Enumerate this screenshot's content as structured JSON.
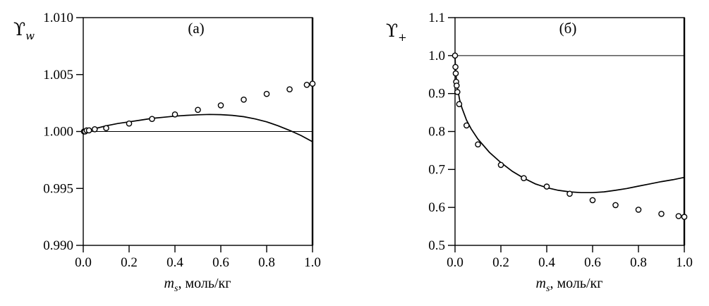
{
  "figure": {
    "background": "#ffffff",
    "ink_color": "#000000",
    "marker": "open-circle"
  },
  "chart_data": [
    {
      "type": "scatter",
      "panel_label": "(a)",
      "y_axis_symbol": "ϒ",
      "y_axis_symbol_sub": "w",
      "x_axis_label_var": "m",
      "x_axis_label_sub": "s",
      "x_axis_label_rest": ", моль/кг",
      "xlim": [
        0.0,
        1.0
      ],
      "ylim": [
        0.99,
        1.01
      ],
      "x_ticks": [
        0.0,
        0.2,
        0.4,
        0.6,
        0.8,
        1.0
      ],
      "x_tick_labels": [
        "0.0",
        "0.2",
        "0.4",
        "0.6",
        "0.8",
        "1.0"
      ],
      "y_ticks": [
        0.99,
        0.995,
        1.0,
        1.005,
        1.01
      ],
      "y_tick_labels": [
        "0.990",
        "0.995",
        "1.000",
        "1.005",
        "1.010"
      ],
      "reference_line_y": 1.0,
      "grid": false,
      "scatter": {
        "x": [
          0.003,
          0.008,
          0.015,
          0.025,
          0.05,
          0.1,
          0.2,
          0.3,
          0.4,
          0.5,
          0.6,
          0.7,
          0.8,
          0.9,
          0.975,
          1.0
        ],
        "y": [
          1.0,
          1.0,
          1.0001,
          1.0001,
          1.0002,
          1.0003,
          1.0007,
          1.0011,
          1.0015,
          1.0019,
          1.0023,
          1.0028,
          1.0033,
          1.0037,
          1.0041,
          1.0042
        ]
      },
      "curve": {
        "x": [
          0,
          0.05,
          0.1,
          0.15,
          0.2,
          0.25,
          0.3,
          0.35,
          0.4,
          0.45,
          0.5,
          0.55,
          0.6,
          0.65,
          0.7,
          0.75,
          0.8,
          0.85,
          0.9,
          0.95,
          1.0
        ],
        "y": [
          1.0,
          1.00025,
          1.0005,
          1.0007,
          1.00085,
          1.001,
          1.00115,
          1.00125,
          1.00135,
          1.00142,
          1.00147,
          1.0015,
          1.00148,
          1.00142,
          1.0013,
          1.0011,
          1.00085,
          1.0005,
          1.0001,
          0.99965,
          0.9991
        ]
      }
    },
    {
      "type": "scatter",
      "panel_label": "(б)",
      "y_axis_symbol": "ϒ",
      "y_axis_symbol_sub": "+",
      "x_axis_label_var": "m",
      "x_axis_label_sub": "s",
      "x_axis_label_rest": ", моль/кг",
      "xlim": [
        0.0,
        1.0
      ],
      "ylim": [
        0.5,
        1.1
      ],
      "x_ticks": [
        0.0,
        0.2,
        0.4,
        0.6,
        0.8,
        1.0
      ],
      "x_tick_labels": [
        "0.0",
        "0.2",
        "0.4",
        "0.6",
        "0.8",
        "1.0"
      ],
      "y_ticks": [
        0.5,
        0.6,
        0.7,
        0.8,
        0.9,
        1.0,
        1.1
      ],
      "y_tick_labels": [
        "0.5",
        "0.6",
        "0.7",
        "0.8",
        "0.9",
        "1.0",
        "1.1"
      ],
      "reference_line_y": 1.0,
      "grid": false,
      "scatter": {
        "x": [
          0.0,
          0.002,
          0.003,
          0.005,
          0.007,
          0.01,
          0.018,
          0.05,
          0.1,
          0.2,
          0.3,
          0.4,
          0.5,
          0.6,
          0.7,
          0.8,
          0.9,
          0.975,
          1.0
        ],
        "y": [
          1.0,
          0.97,
          0.953,
          0.931,
          0.921,
          0.904,
          0.872,
          0.816,
          0.766,
          0.712,
          0.677,
          0.655,
          0.636,
          0.619,
          0.606,
          0.594,
          0.583,
          0.577,
          0.575
        ]
      },
      "curve": {
        "x": [
          0,
          0.002,
          0.005,
          0.01,
          0.02,
          0.03,
          0.05,
          0.07,
          0.1,
          0.15,
          0.2,
          0.25,
          0.3,
          0.35,
          0.4,
          0.45,
          0.5,
          0.55,
          0.6,
          0.65,
          0.7,
          0.75,
          0.8,
          0.85,
          0.9,
          0.95,
          1.0
        ],
        "y": [
          1.0,
          0.97,
          0.943,
          0.916,
          0.884,
          0.862,
          0.83,
          0.807,
          0.78,
          0.745,
          0.718,
          0.695,
          0.677,
          0.662,
          0.652,
          0.645,
          0.641,
          0.639,
          0.639,
          0.641,
          0.645,
          0.65,
          0.656,
          0.662,
          0.668,
          0.673,
          0.679
        ]
      }
    }
  ]
}
